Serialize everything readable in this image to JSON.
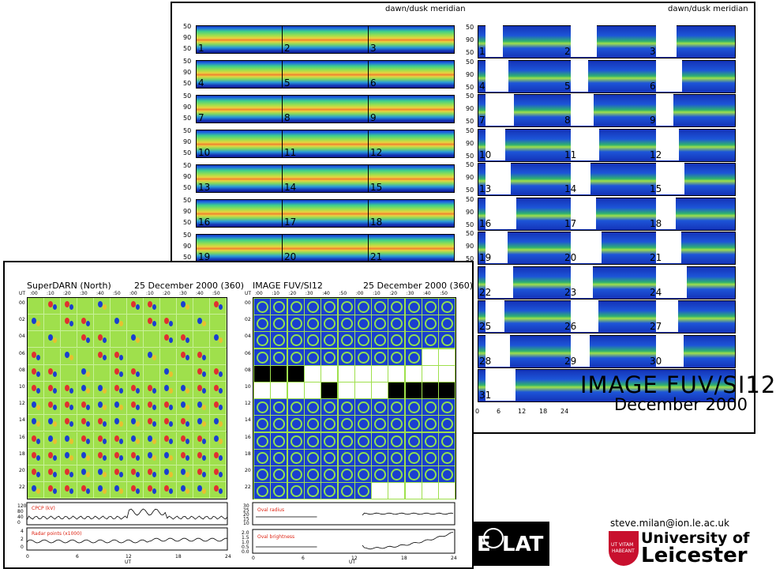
{
  "back_panel": {
    "meridian_label_left": "dawn/dusk meridian",
    "meridian_label_right": "dawn/dusk meridian",
    "y_ticks": [
      "50",
      "90",
      "50"
    ],
    "day_labels": [
      "1",
      "2",
      "3",
      "4",
      "5",
      "6",
      "7",
      "8",
      "9",
      "10",
      "11",
      "12",
      "13",
      "14",
      "15",
      "16",
      "17",
      "18",
      "19",
      "20",
      "21"
    ],
    "fuv_day_labels": [
      "1",
      "2",
      "3",
      "4",
      "5",
      "6",
      "7",
      "8",
      "9",
      "10",
      "11",
      "12",
      "13",
      "14",
      "15",
      "16",
      "17",
      "18",
      "19",
      "20",
      "21",
      "22",
      "23",
      "24",
      "25",
      "26",
      "27",
      "28",
      "29",
      "30",
      "31"
    ],
    "fuv_x_ticks": [
      "0",
      "6",
      "12",
      "18",
      "24"
    ],
    "title_line1": "IMAGE FUV/SI12",
    "title_line2": "December 2000"
  },
  "front_panel": {
    "superdarn_title": "SuperDARN (North)",
    "superdarn_date": "25 December 2000 (360)",
    "image_title": "IMAGE FUV/SI12",
    "image_date": "25 December 2000 (360)",
    "minute_ticks": [
      ":00",
      ":10",
      ":20",
      ":30",
      ":40",
      ":50",
      ":00",
      ":10",
      ":20",
      ":30",
      ":40",
      ":50"
    ],
    "hour_ticks": [
      "00",
      "02",
      "04",
      "06",
      "08",
      "10",
      "12",
      "14",
      "16",
      "18",
      "20",
      "22"
    ],
    "ut_label": "UT",
    "superdarn_plot1_label": "CPCP (kV)",
    "superdarn_plot1_yticks": [
      "120",
      "80",
      "40",
      "0"
    ],
    "superdarn_plot2_label": "Radar points (x1000)",
    "superdarn_plot2_yticks": [
      "4",
      "2",
      "0"
    ],
    "image_plot1_label": "Oval radius",
    "image_plot1_yticks": [
      "30",
      "25",
      "20",
      "15",
      "10"
    ],
    "image_plot2_label": "Oval brightness",
    "image_plot2_yticks": [
      "2.0",
      "1.5",
      "1.0",
      "0.5",
      "0.0"
    ],
    "bottom_x_ticks": [
      "0",
      "6",
      "12",
      "18",
      "24"
    ]
  },
  "footer": {
    "email": "steve.milan@ion.le.ac.uk",
    "eolat_text": "LAT",
    "eolat_prefix": "E",
    "uni_line1": "University of",
    "uni_line2": "Leicester",
    "shield_motto_1": "UT VITAM",
    "shield_motto_2": "HABEANT"
  },
  "colors": {
    "superdarn_bg": "#9fe04c",
    "fuv_blue": "#1a3fd0",
    "uni_red": "#c8102e"
  }
}
